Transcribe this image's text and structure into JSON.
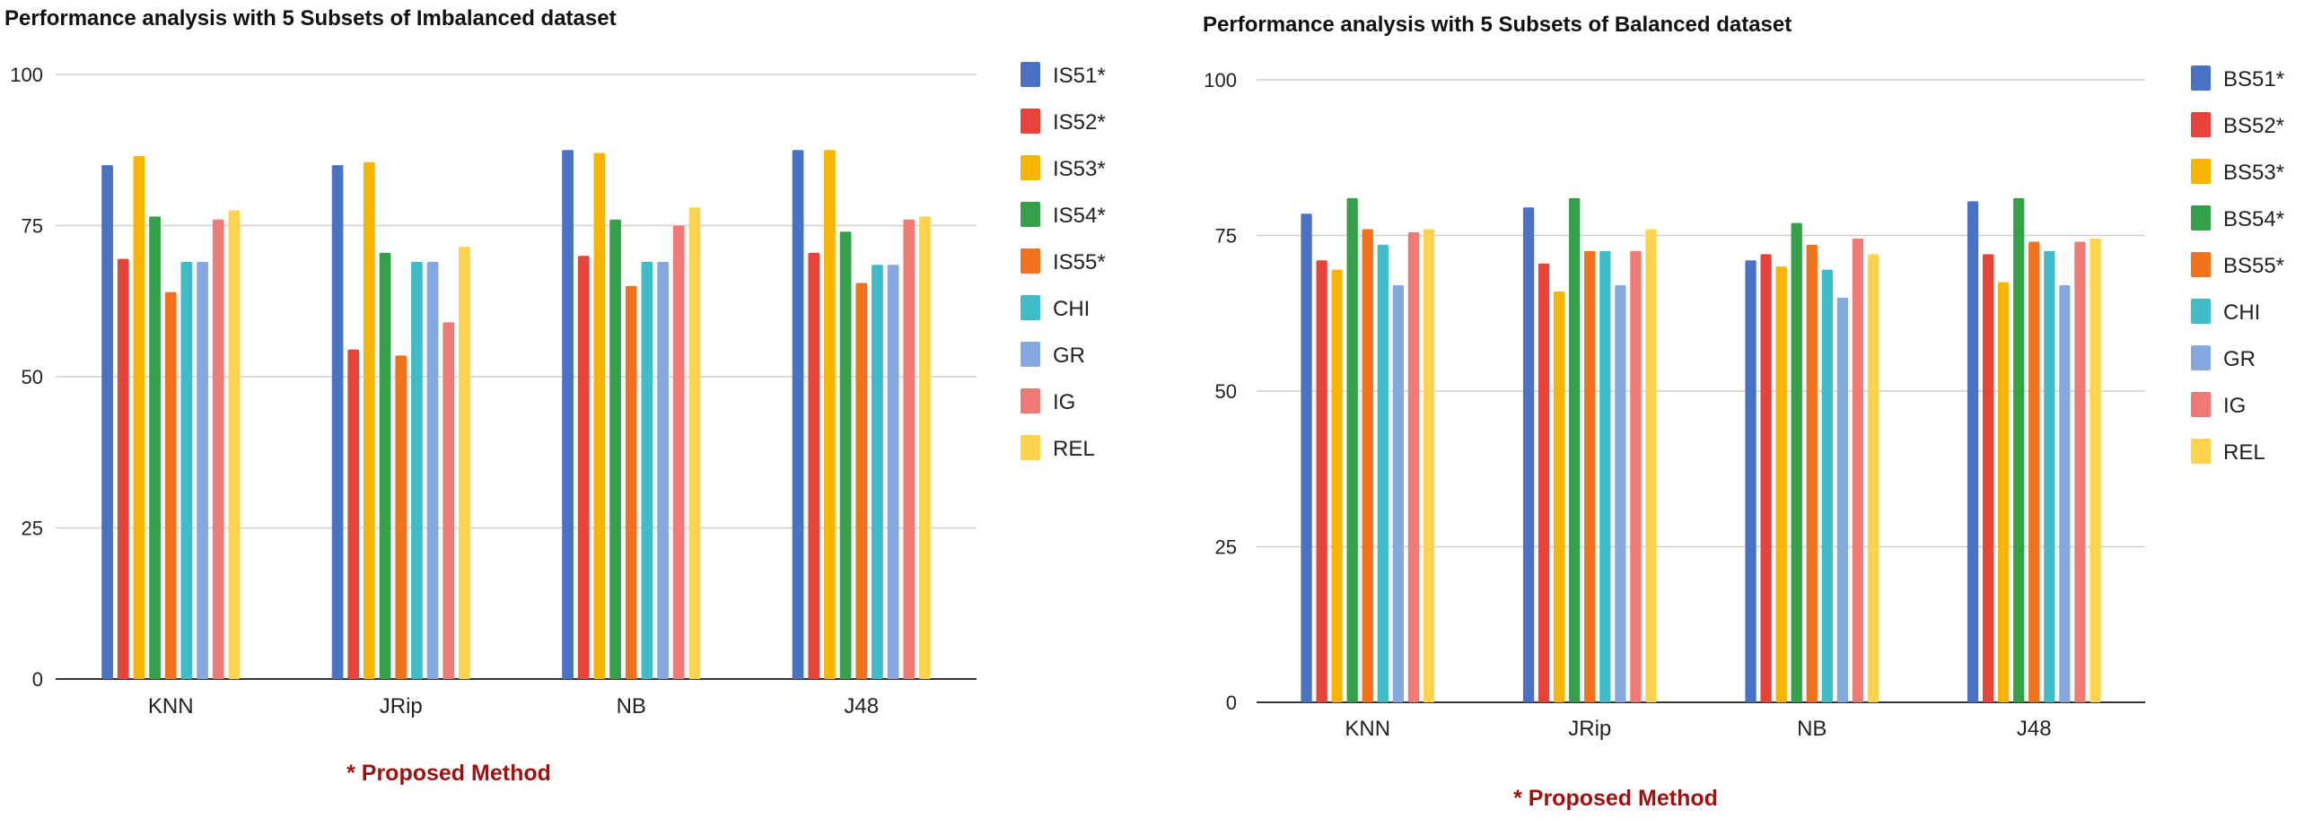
{
  "chart_data": [
    {
      "type": "bar",
      "title": "Performance analysis with 5 Subsets  of Imbalanced dataset",
      "categories": [
        "KNN",
        "JRip",
        "NB",
        "J48"
      ],
      "ylim": [
        0,
        100
      ],
      "yticks": [
        0,
        25,
        50,
        75,
        100
      ],
      "grid": true,
      "legend_position": "right",
      "note": "* Proposed Method",
      "series": [
        {
          "name": "IS51*",
          "color": "#4a72c4",
          "values": [
            85,
            85,
            87.5,
            87.5
          ]
        },
        {
          "name": "IS52*",
          "color": "#e8433a",
          "values": [
            69.5,
            54.5,
            70,
            70.5
          ]
        },
        {
          "name": "IS53*",
          "color": "#f7b400",
          "values": [
            86.5,
            85.5,
            87,
            87.5
          ]
        },
        {
          "name": "IS54*",
          "color": "#34a049",
          "values": [
            76.5,
            70.5,
            76,
            74
          ]
        },
        {
          "name": "IS55*",
          "color": "#f2711c",
          "values": [
            64,
            53.5,
            65,
            65.5
          ]
        },
        {
          "name": "CHI",
          "color": "#3fbcc8",
          "values": [
            69,
            69,
            69,
            68.5
          ]
        },
        {
          "name": "GR",
          "color": "#86a8e0",
          "values": [
            69,
            69,
            69,
            68.5
          ]
        },
        {
          "name": "IG",
          "color": "#f07a76",
          "values": [
            76,
            59,
            75,
            76
          ]
        },
        {
          "name": "REL",
          "color": "#ffd34d",
          "values": [
            77.5,
            71.5,
            78,
            76.5
          ]
        }
      ]
    },
    {
      "type": "bar",
      "title": "Performance analysis with 5 Subsets  of Balanced dataset",
      "categories": [
        "KNN",
        "JRip",
        "NB",
        "J48"
      ],
      "ylim": [
        0,
        100
      ],
      "yticks": [
        0,
        25,
        50,
        75,
        100
      ],
      "grid": true,
      "legend_position": "right",
      "note": "* Proposed Method",
      "series": [
        {
          "name": "BS51*",
          "color": "#4a72c4",
          "values": [
            78.5,
            79.5,
            71,
            80.5
          ]
        },
        {
          "name": "BS52*",
          "color": "#e8433a",
          "values": [
            71,
            70.5,
            72,
            72
          ]
        },
        {
          "name": "BS53*",
          "color": "#f7b400",
          "values": [
            69.5,
            66,
            70,
            67.5
          ]
        },
        {
          "name": "BS54*",
          "color": "#34a049",
          "values": [
            81,
            81,
            77,
            81
          ]
        },
        {
          "name": "BS55*",
          "color": "#f2711c",
          "values": [
            76,
            72.5,
            73.5,
            74
          ]
        },
        {
          "name": "CHI",
          "color": "#3fbcc8",
          "values": [
            73.5,
            72.5,
            69.5,
            72.5
          ]
        },
        {
          "name": "GR",
          "color": "#86a8e0",
          "values": [
            67,
            67,
            65,
            67
          ]
        },
        {
          "name": "IG",
          "color": "#f07a76",
          "values": [
            75.5,
            72.5,
            74.5,
            74
          ]
        },
        {
          "name": "REL",
          "color": "#ffd34d",
          "values": [
            76,
            76,
            72,
            74.5
          ]
        }
      ]
    }
  ]
}
